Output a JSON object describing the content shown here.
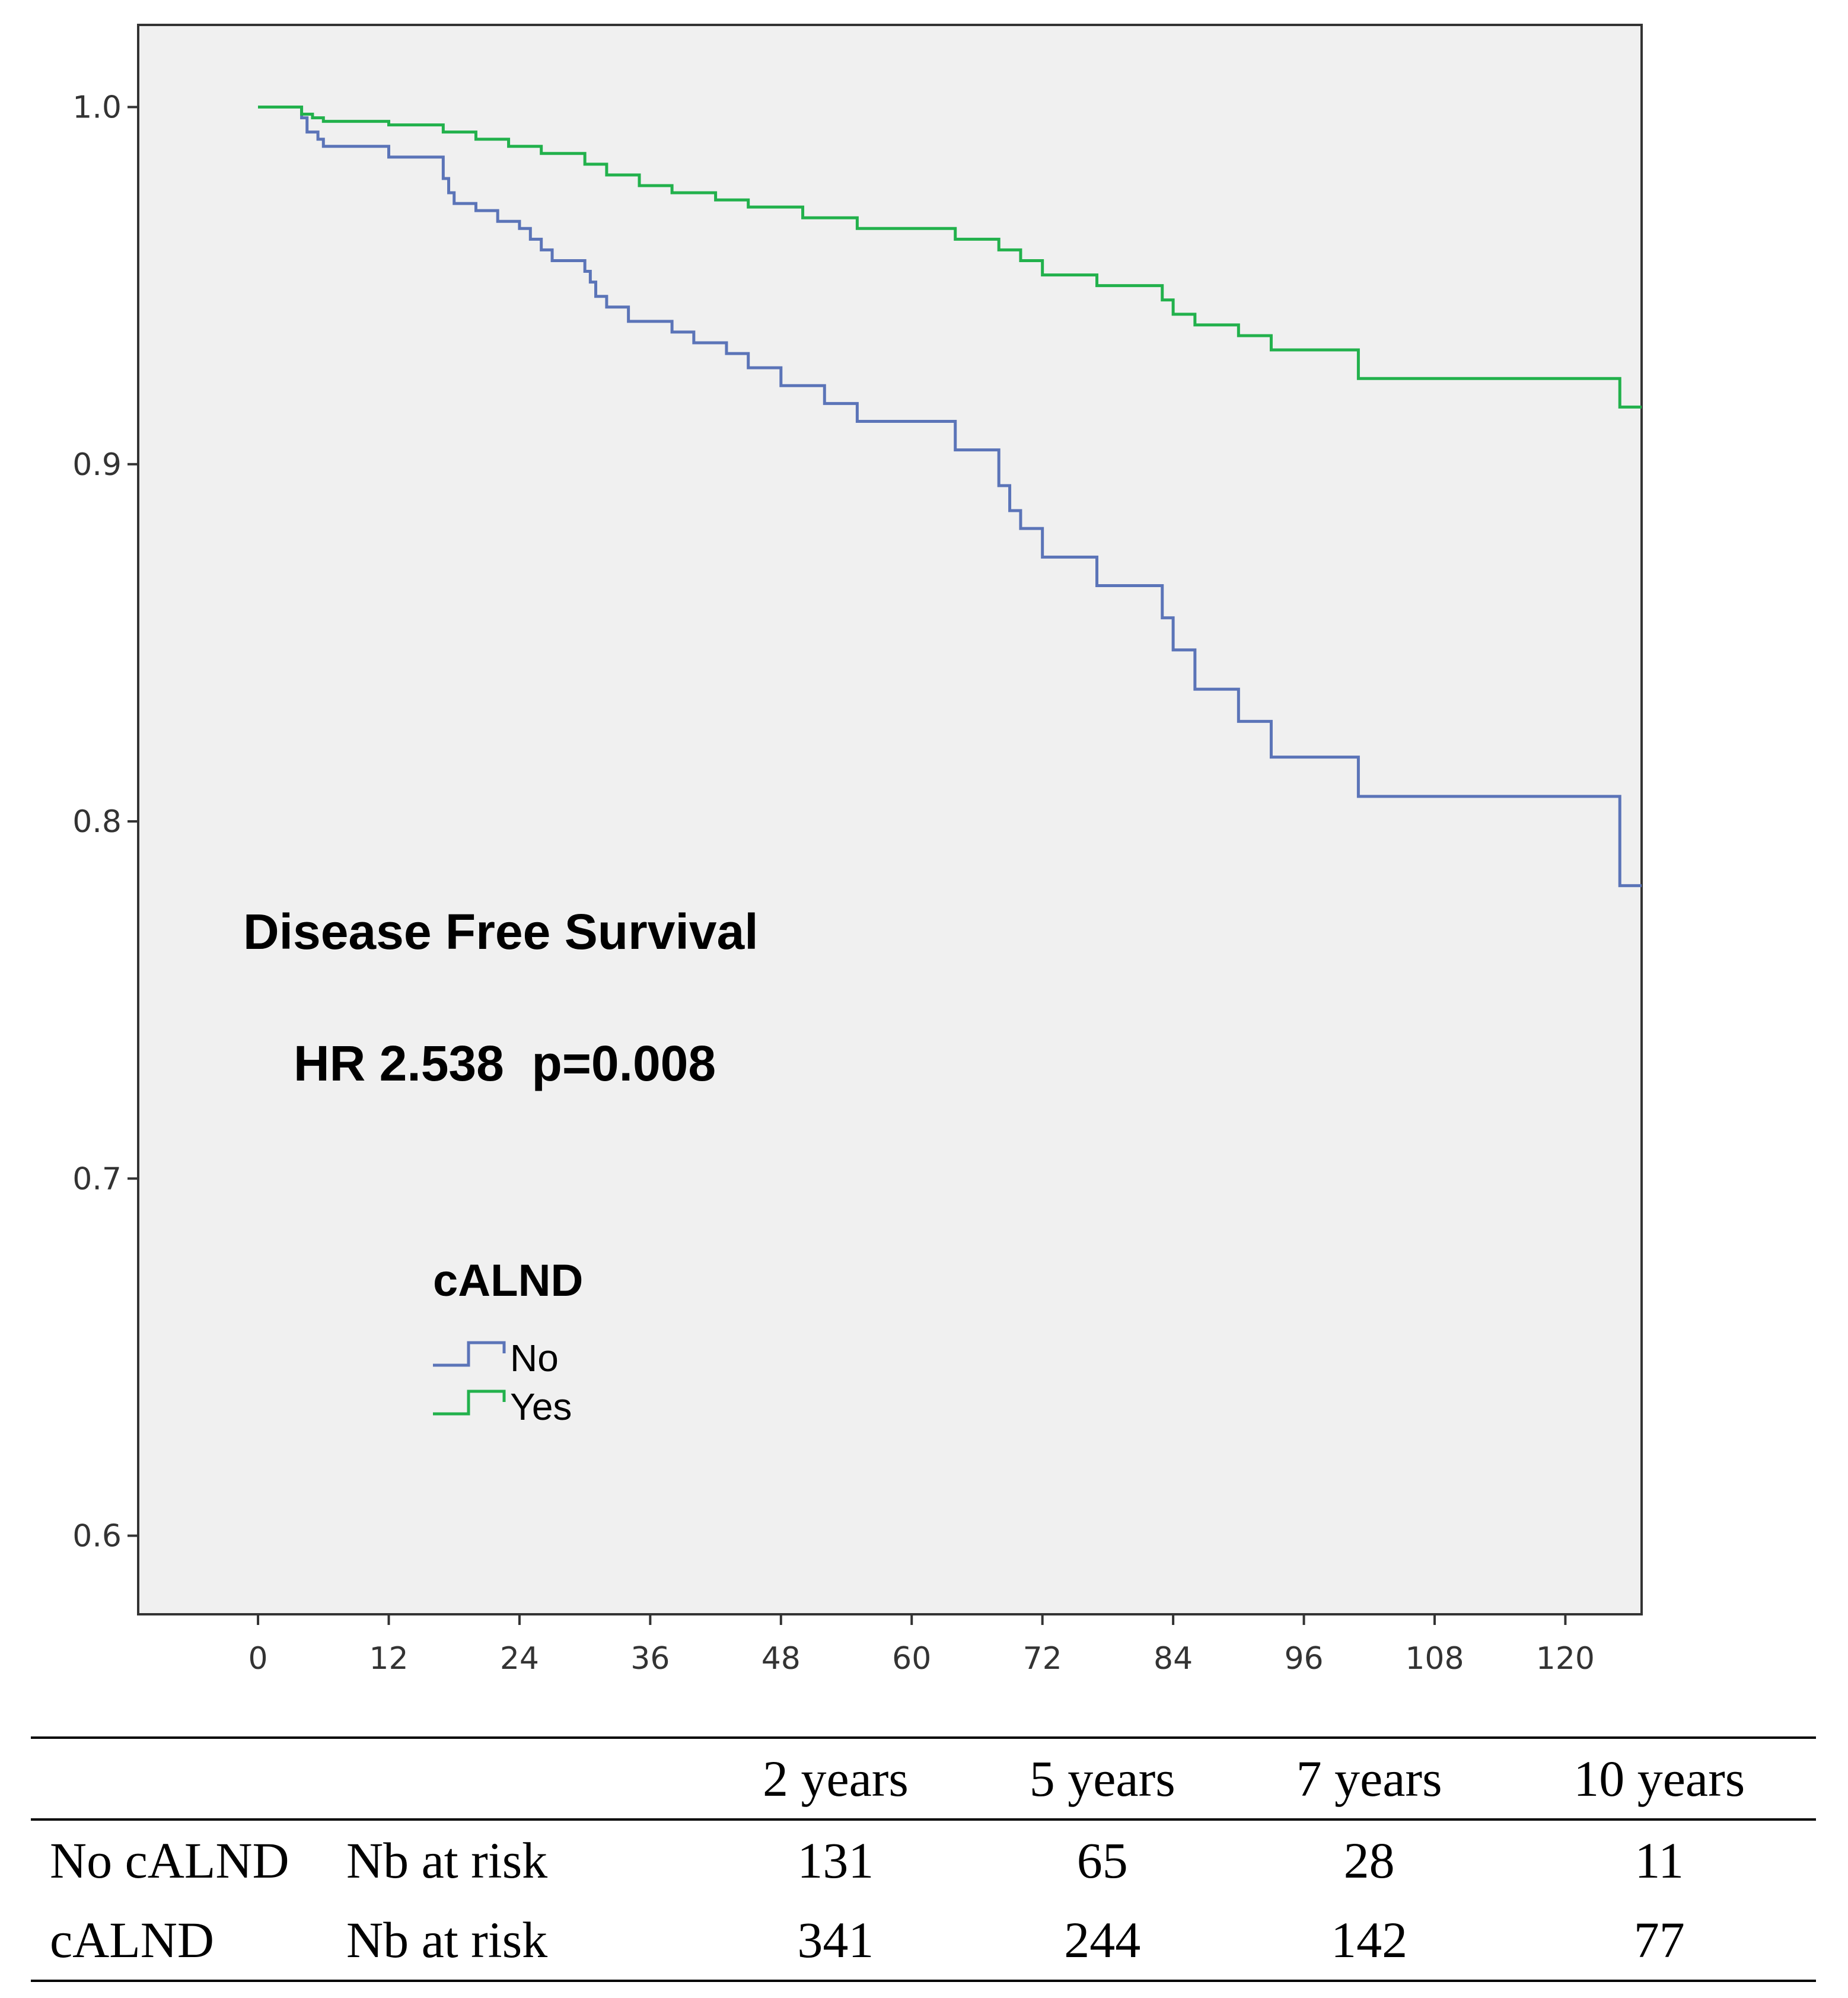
{
  "chart_data": {
    "type": "line",
    "title": "Disease Free Survival",
    "annotation": "HR 2.538  p=0.008",
    "xlabel": "",
    "ylabel": "",
    "xlim": [
      -11,
      127
    ],
    "ylim": [
      0.578,
      1.023
    ],
    "x_ticks": [
      0,
      12,
      24,
      36,
      48,
      60,
      72,
      84,
      96,
      108,
      120
    ],
    "x_tick_labels": [
      "0",
      "12",
      "24",
      "36",
      "48",
      "60",
      "72",
      "84",
      "96",
      "108",
      "120"
    ],
    "y_ticks": [
      0.6,
      0.7,
      0.8,
      0.9,
      1.0
    ],
    "y_tick_labels": [
      "0.6",
      "0.7",
      "0.8",
      "0.9",
      "1.0"
    ],
    "legend": {
      "title": "cALND",
      "placement": "lower-left"
    },
    "series": [
      {
        "name": "No",
        "color": "#5b74b8",
        "x": [
          0,
          4,
          4.5,
          5.5,
          6,
          12,
          17,
          17.5,
          18,
          20,
          22,
          24,
          25,
          26,
          27,
          30,
          30.5,
          31,
          32,
          34,
          38,
          40,
          43,
          45,
          48,
          52,
          55,
          64,
          68,
          69,
          70,
          72,
          77,
          83,
          84,
          86,
          90,
          93,
          101,
          125
        ],
        "y": [
          1.0,
          0.997,
          0.993,
          0.991,
          0.989,
          0.986,
          0.98,
          0.976,
          0.973,
          0.971,
          0.968,
          0.966,
          0.963,
          0.96,
          0.957,
          0.954,
          0.951,
          0.947,
          0.944,
          0.94,
          0.937,
          0.934,
          0.931,
          0.927,
          0.922,
          0.917,
          0.912,
          0.904,
          0.894,
          0.887,
          0.882,
          0.874,
          0.866,
          0.857,
          0.848,
          0.837,
          0.828,
          0.818,
          0.807,
          0.782
        ]
      },
      {
        "name": "Yes",
        "color": "#22b14c",
        "x": [
          0,
          4,
          5,
          6,
          12,
          17,
          20,
          23,
          26,
          30,
          32,
          35,
          38,
          42,
          45,
          50,
          55,
          64,
          68,
          70,
          72,
          77,
          83,
          84,
          86,
          90,
          93,
          101,
          125
        ],
        "y": [
          1.0,
          0.998,
          0.997,
          0.996,
          0.995,
          0.993,
          0.991,
          0.989,
          0.987,
          0.984,
          0.981,
          0.978,
          0.976,
          0.974,
          0.972,
          0.969,
          0.966,
          0.963,
          0.96,
          0.957,
          0.953,
          0.95,
          0.946,
          0.942,
          0.939,
          0.936,
          0.932,
          0.924,
          0.916
        ]
      }
    ]
  },
  "risk_table": {
    "headers": [
      "",
      "",
      "2 years",
      "5 years",
      "7 years",
      "10 years"
    ],
    "rows": [
      {
        "group": "No cALND",
        "label": "Nb at risk",
        "values": [
          "131",
          "65",
          "28",
          "11"
        ]
      },
      {
        "group": "cALND",
        "label": "Nb at risk",
        "values": [
          "341",
          "244",
          "142",
          "77"
        ]
      }
    ]
  }
}
